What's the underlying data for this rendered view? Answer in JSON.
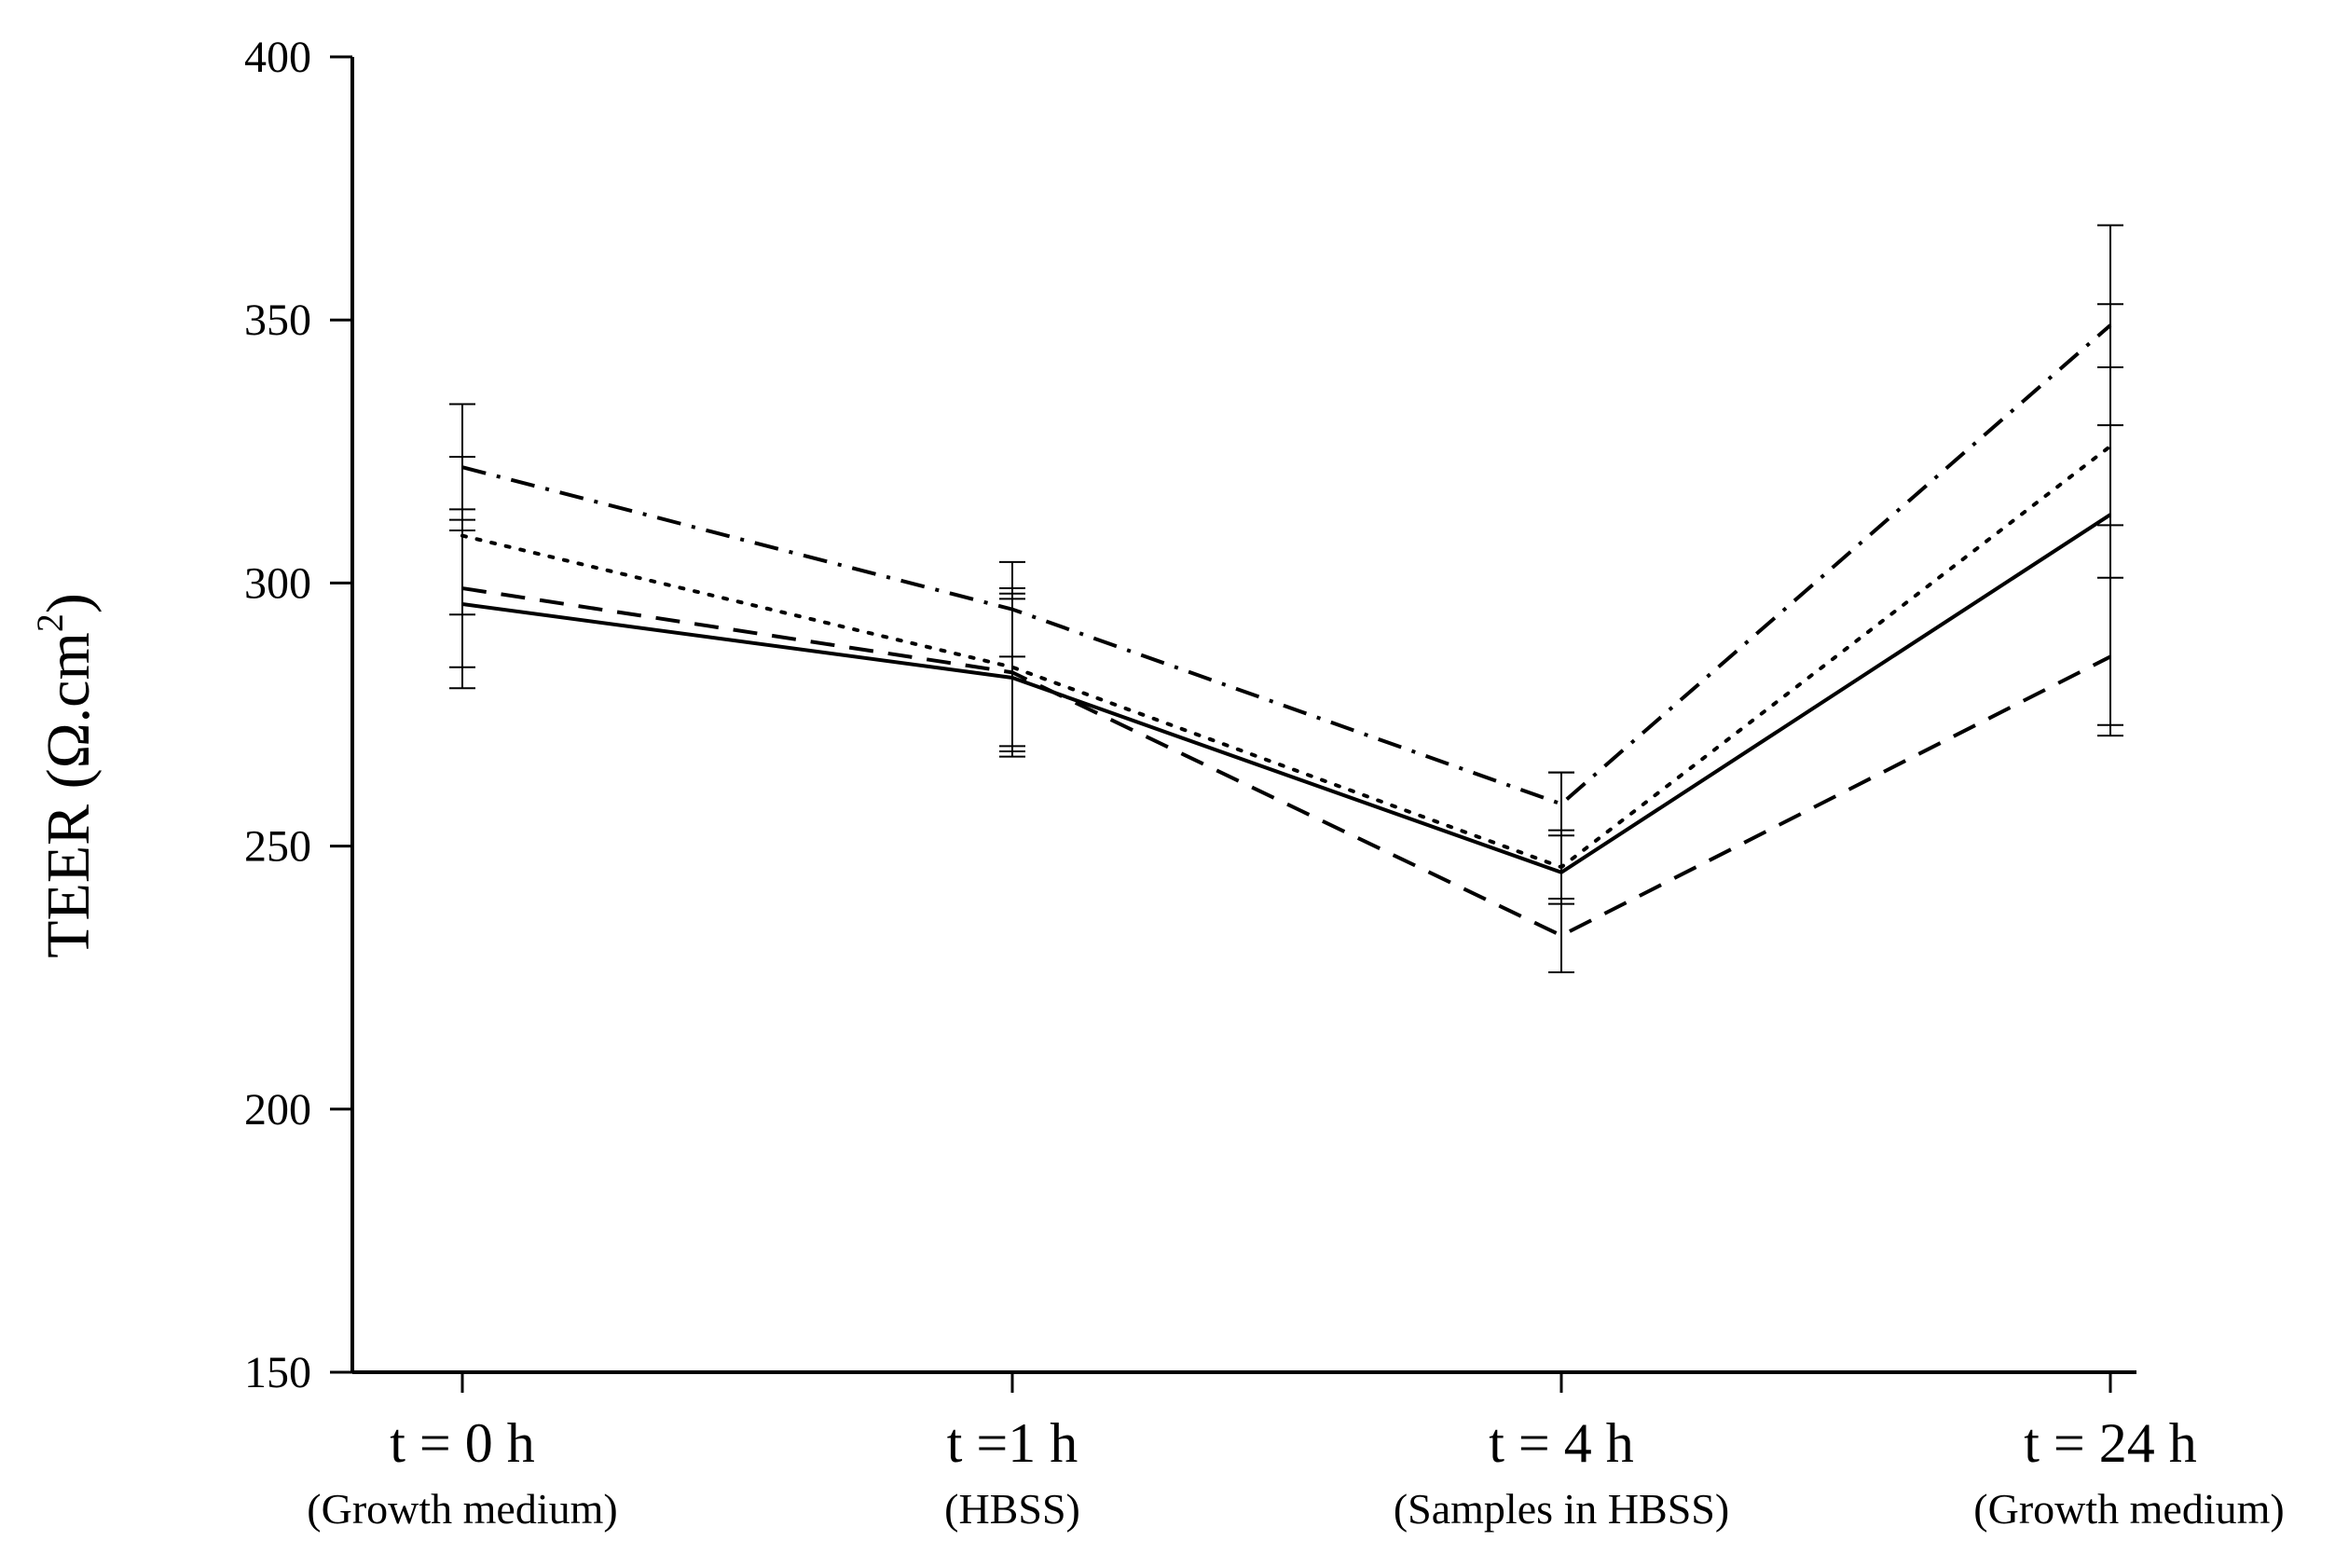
{
  "chart_data": {
    "type": "line",
    "title": "",
    "xlabel": "",
    "ylabel": "TEER (Ω.cm",
    "ylabel_superscript": "2",
    "ylabel_close": ")",
    "ylim": [
      150,
      400
    ],
    "yticks": [
      150,
      200,
      250,
      300,
      350,
      400
    ],
    "categories": [
      {
        "main": "t = 0 h",
        "sub": "(Growth medium)"
      },
      {
        "main": "t =1 h",
        "sub": "(HBSS)"
      },
      {
        "main": "t = 4 h",
        "sub": "(Samples in HBSS)"
      },
      {
        "main": "t = 24 h",
        "sub": "(Growth medium)"
      }
    ],
    "series": [
      {
        "name": "solid",
        "style": "solid",
        "values": [
          296,
          282,
          245,
          313
        ],
        "errors": [
          16,
          15,
          19,
          40
        ]
      },
      {
        "name": "dashed",
        "style": "dashed",
        "values": [
          299,
          283,
          233,
          286
        ],
        "errors": [
          15,
          15,
          7,
          15
        ]
      },
      {
        "name": "dotted",
        "style": "dotted",
        "values": [
          309,
          284,
          246,
          326
        ],
        "errors": [
          15,
          15,
          7,
          15
        ]
      },
      {
        "name": "dash-dot",
        "style": "dashdot",
        "values": [
          322,
          295,
          258,
          349
        ],
        "errors": [
          12,
          9,
          6,
          19
        ]
      }
    ]
  }
}
